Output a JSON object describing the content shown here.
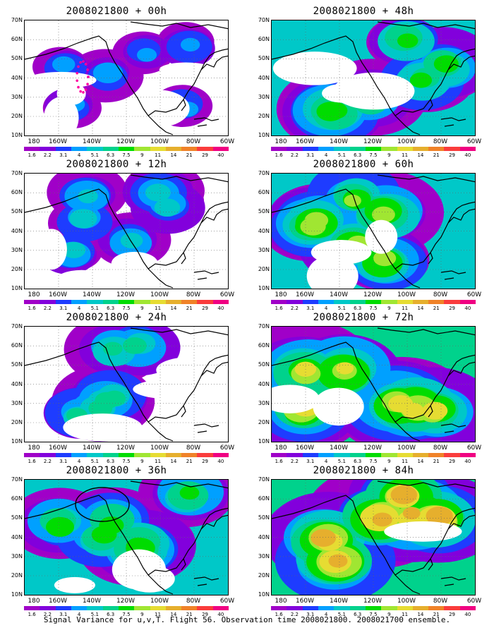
{
  "colorbar": {
    "levels": [
      "1.6",
      "2.2",
      "3.1",
      "4",
      "5.1",
      "6.3",
      "7.5",
      "9",
      "11",
      "14",
      "21",
      "29",
      "40"
    ],
    "colors": [
      "#a000c8",
      "#8200dc",
      "#1e3cff",
      "#00a0ff",
      "#00c8c8",
      "#00d28c",
      "#00dc00",
      "#a0e632",
      "#e6dc32",
      "#e6af2d",
      "#f08228",
      "#fa3c3c",
      "#f00082"
    ]
  },
  "x_ticks": [
    "180",
    "160W",
    "140W",
    "120W",
    "100W",
    "80W",
    "60W"
  ],
  "y_ticks": [
    "70N",
    "60N",
    "50N",
    "40N",
    "30N",
    "20N",
    "10N"
  ],
  "footer": "Signal Variance for u,v,T. Flight 56. Observation time 2008021800. 2008021700 ensemble.",
  "chart_data": [
    {
      "type": "heatmap",
      "title": "2008021800 + 00h",
      "intensity": 0.25
    },
    {
      "type": "heatmap",
      "title": "2008021800 + 12h",
      "intensity": 0.35
    },
    {
      "type": "heatmap",
      "title": "2008021800 + 24h",
      "intensity": 0.45
    },
    {
      "type": "heatmap",
      "title": "2008021800 + 36h",
      "intensity": 0.6
    },
    {
      "type": "heatmap",
      "title": "2008021800 + 48h",
      "intensity": 0.6
    },
    {
      "type": "heatmap",
      "title": "2008021800 + 60h",
      "intensity": 0.65
    },
    {
      "type": "heatmap",
      "title": "2008021800 + 72h",
      "intensity": 0.75
    },
    {
      "type": "heatmap",
      "title": "2008021800 + 84h",
      "intensity": 0.85
    }
  ]
}
